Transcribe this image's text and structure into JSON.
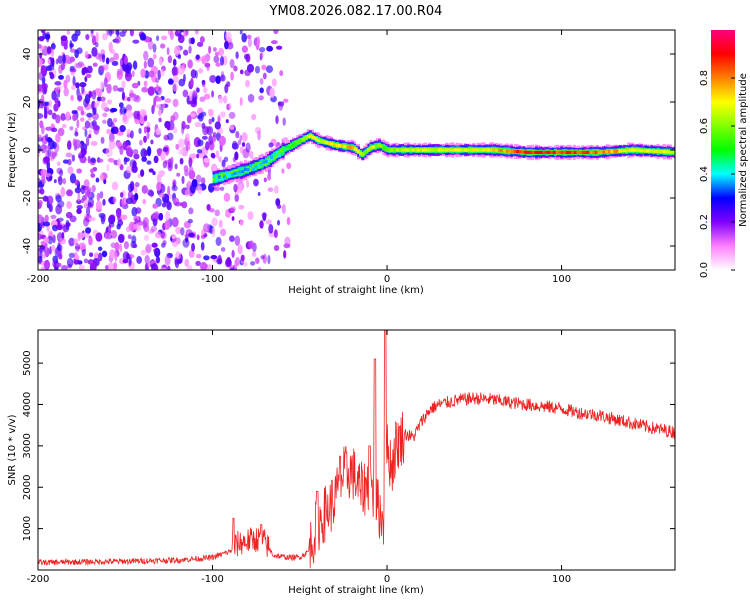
{
  "title": "YM08.2026.082.17.00.R04",
  "chart_data": [
    {
      "type": "heatmap",
      "name": "spectrogram",
      "xlabel": "Height of straight line (km)",
      "ylabel": "Frequency (Hz)",
      "xlim": [
        -200,
        165
      ],
      "ylim": [
        -50,
        50
      ],
      "xticks": [
        -200,
        -100,
        0,
        100
      ],
      "yticks": [
        -40,
        -20,
        0,
        20,
        40
      ],
      "colorbar": {
        "label": "Normalized spectral amplitude",
        "range": [
          0,
          1
        ],
        "ticks": [
          "0.0",
          "0.2",
          "0.4",
          "0.6",
          "0.8"
        ],
        "colors": [
          "#ffffff",
          "#ff80ff",
          "#8000ff",
          "#0000ff",
          "#00ffff",
          "#00ff00",
          "#80ff00",
          "#ffff00",
          "#ff8000",
          "#ff0000",
          "#ff0080"
        ]
      },
      "ridge": {
        "x": [
          -100,
          -90,
          -80,
          -70,
          -60,
          -50,
          -45,
          -40,
          -30,
          -20,
          -15,
          -10,
          -5,
          0,
          10,
          30,
          60,
          80,
          100,
          120,
          140,
          165
        ],
        "y": [
          -12,
          -10,
          -8,
          -5,
          0,
          4,
          6,
          4,
          2,
          1,
          -2,
          1,
          2,
          0,
          0,
          0,
          0,
          -1,
          -1,
          -1,
          0,
          -1
        ],
        "amplitude": [
          0.4,
          0.4,
          0.4,
          0.4,
          0.45,
          0.6,
          0.8,
          0.7,
          0.75,
          0.8,
          0.6,
          0.7,
          0.6,
          0.6,
          0.7,
          0.7,
          0.75,
          0.95,
          0.9,
          0.85,
          0.75,
          0.7
        ]
      },
      "noise_region_x": [
        -200,
        -55
      ]
    },
    {
      "type": "line",
      "name": "snr",
      "xlabel": "Height of straight line (km)",
      "ylabel": "SNR (10 * v/v)",
      "xlim": [
        -200,
        165
      ],
      "ylim": [
        0,
        5800
      ],
      "xticks": [
        -200,
        -100,
        0,
        100
      ],
      "yticks": [
        1000,
        2000,
        3000,
        4000,
        5000
      ],
      "color": "#ee2222",
      "x": [
        -200,
        -150,
        -120,
        -100,
        -90,
        -85,
        -80,
        -75,
        -70,
        -65,
        -60,
        -55,
        -50,
        -45,
        -40,
        -35,
        -30,
        -25,
        -20,
        -15,
        -10,
        -5,
        -2,
        0,
        3,
        5,
        10,
        15,
        20,
        25,
        30,
        40,
        50,
        60,
        70,
        80,
        90,
        100,
        110,
        120,
        130,
        140,
        150,
        165
      ],
      "y": [
        180,
        210,
        240,
        300,
        450,
        650,
        700,
        750,
        680,
        350,
        320,
        300,
        310,
        450,
        1100,
        1400,
        1700,
        2300,
        2400,
        1900,
        2100,
        1500,
        1200,
        2900,
        2500,
        3000,
        3300,
        3200,
        3600,
        3900,
        4000,
        4100,
        4150,
        4120,
        4050,
        4000,
        3950,
        3900,
        3800,
        3750,
        3650,
        3550,
        3450,
        3330
      ],
      "spikes": [
        {
          "x": -88,
          "y": 1250
        },
        {
          "x": -72,
          "y": 1100
        },
        {
          "x": -40,
          "y": 1900
        },
        {
          "x": -27,
          "y": 2750
        },
        {
          "x": -10,
          "y": 3000
        },
        {
          "x": -7,
          "y": 5100
        },
        {
          "x": -1,
          "y": 5850
        }
      ]
    }
  ]
}
